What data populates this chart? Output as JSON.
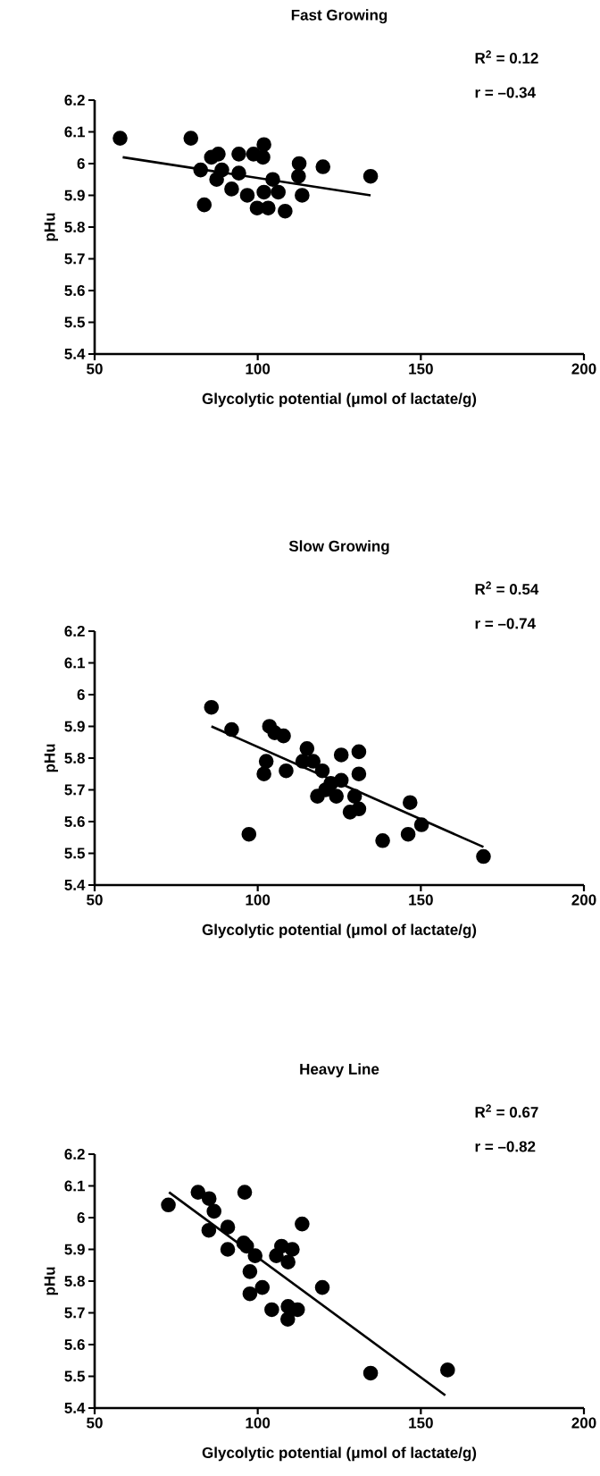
{
  "chart_data": [
    {
      "type": "scatter",
      "title": "Fast Growing",
      "xlabel": "Glycolytic potential (μmol of lactate/g)",
      "ylabel": "pHu",
      "xlim": [
        50,
        200
      ],
      "ylim": [
        5.4,
        6.2
      ],
      "xticks": [
        50,
        100,
        150,
        200
      ],
      "yticks": [
        5.4,
        5.5,
        5.6,
        5.7,
        5.8,
        5.9,
        6,
        6.1,
        6.2
      ],
      "annotations": [
        "R$^{2}$ = 0.12",
        "r = –0.34"
      ],
      "series": [
        {
          "type": "scatter",
          "color": "#000000",
          "marker": "circle",
          "x": [
            57.8,
            79.5,
            85.8,
            87.9,
            82.5,
            89.0,
            87.4,
            94.2,
            94.2,
            92.0,
            83.6,
            96.8,
            98.7,
            101.9,
            101.6,
            99.8,
            101.9,
            103.2,
            106.3,
            104.6,
            108.4,
            112.7,
            112.5,
            113.6,
            120.0,
            134.6
          ],
          "values": [
            6.08,
            6.08,
            6.02,
            6.03,
            5.98,
            5.98,
            5.95,
            6.03,
            5.97,
            5.92,
            5.87,
            5.9,
            6.03,
            6.06,
            6.02,
            5.86,
            5.91,
            5.86,
            5.91,
            5.95,
            5.85,
            6.0,
            5.96,
            5.9,
            5.99,
            5.96
          ]
        },
        {
          "type": "line",
          "color": "#000000",
          "marker": "none",
          "line_style": "solid",
          "x": [
            58.6,
            134.6
          ],
          "values": [
            6.02,
            5.9
          ]
        }
      ]
    },
    {
      "type": "scatter",
      "title": "Slow Growing",
      "xlabel": "Glycolytic potential (μmol of lactate/g)",
      "ylabel": "pHu",
      "xlim": [
        50,
        200
      ],
      "ylim": [
        5.4,
        6.2
      ],
      "xticks": [
        50,
        100,
        150,
        200
      ],
      "yticks": [
        5.4,
        5.5,
        5.6,
        5.7,
        5.8,
        5.9,
        6,
        6.1,
        6.2
      ],
      "annotations": [
        "R$^{2}$ = 0.54",
        "r = –0.74"
      ],
      "series": [
        {
          "type": "scatter",
          "color": "#000000",
          "marker": "circle",
          "x": [
            85.8,
            92.0,
            103.6,
            105.2,
            107.9,
            102.6,
            101.9,
            108.7,
            97.3,
            115.1,
            113.8,
            117.0,
            119.8,
            125.6,
            131.0,
            131.0,
            125.6,
            122.4,
            120.8,
            118.3,
            124.1,
            129.7,
            128.3,
            131.0,
            138.3,
            146.7,
            146.1,
            150.2,
            169.2
          ],
          "values": [
            5.96,
            5.89,
            5.9,
            5.88,
            5.87,
            5.79,
            5.75,
            5.76,
            5.56,
            5.83,
            5.79,
            5.79,
            5.76,
            5.81,
            5.82,
            5.75,
            5.73,
            5.72,
            5.7,
            5.68,
            5.68,
            5.68,
            5.63,
            5.64,
            5.54,
            5.66,
            5.56,
            5.59,
            5.49
          ]
        },
        {
          "type": "line",
          "color": "#000000",
          "marker": "none",
          "line_style": "solid",
          "x": [
            85.8,
            169.2
          ],
          "values": [
            5.9,
            5.52
          ]
        }
      ]
    },
    {
      "type": "scatter",
      "title": "Heavy Line",
      "xlabel": "Glycolytic potential (μmol of lactate/g)",
      "ylabel": "pHu",
      "xlim": [
        50,
        200
      ],
      "ylim": [
        5.4,
        6.2
      ],
      "xticks": [
        50,
        100,
        150,
        200
      ],
      "yticks": [
        5.4,
        5.5,
        5.6,
        5.7,
        5.8,
        5.9,
        6,
        6.1,
        6.2
      ],
      "annotations": [
        "R$^{2}$ = 0.67",
        "r = –0.82"
      ],
      "series": [
        {
          "type": "scatter",
          "color": "#000000",
          "marker": "circle",
          "x": [
            72.6,
            81.7,
            85.1,
            86.6,
            85.0,
            90.8,
            90.8,
            96.0,
            95.7,
            96.6,
            99.2,
            97.6,
            97.6,
            101.4,
            105.7,
            107.3,
            110.6,
            109.3,
            113.6,
            104.3,
            109.3,
            112.2,
            109.2,
            119.8,
            134.6,
            158.2
          ],
          "values": [
            6.04,
            6.08,
            6.06,
            6.02,
            5.96,
            5.97,
            5.9,
            6.08,
            5.92,
            5.91,
            5.88,
            5.83,
            5.76,
            5.78,
            5.88,
            5.91,
            5.9,
            5.86,
            5.98,
            5.71,
            5.72,
            5.71,
            5.68,
            5.78,
            5.51,
            5.52
          ]
        },
        {
          "type": "line",
          "color": "#000000",
          "marker": "none",
          "line_style": "solid",
          "x": [
            72.8,
            157.5
          ],
          "values": [
            6.08,
            5.44
          ]
        }
      ]
    }
  ]
}
